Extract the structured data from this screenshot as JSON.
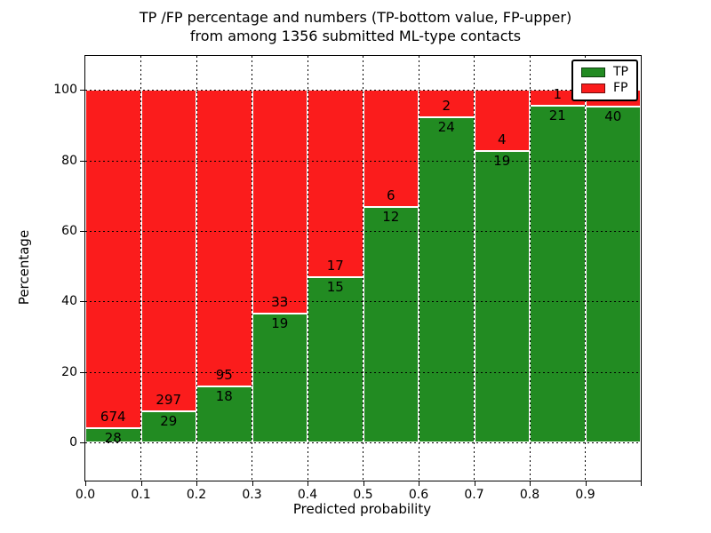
{
  "chart_data": {
    "type": "bar",
    "stacked": true,
    "title_line1": "TP /FP percentage and numbers (TP-bottom value, FP-upper)",
    "title_line2": "from among 1356 submitted ML-type contacts",
    "xlabel": "Predicted probability",
    "ylabel": "Percentage",
    "total_contacts": 1356,
    "xlim": [
      0.0,
      1.0
    ],
    "ylim": [
      -10.8,
      109.6
    ],
    "bin_width": 0.1,
    "grid": true,
    "y_ticks": [
      0,
      20,
      40,
      60,
      80,
      100
    ],
    "x_ticks": [
      {
        "v": 0.0,
        "label": "0.0"
      },
      {
        "v": 0.1,
        "label": "0.1"
      },
      {
        "v": 0.2,
        "label": "0.2"
      },
      {
        "v": 0.3,
        "label": "0.3"
      },
      {
        "v": 0.4,
        "label": "0.4"
      },
      {
        "v": 0.5,
        "label": "0.5"
      },
      {
        "v": 0.6,
        "label": "0.6"
      },
      {
        "v": 0.7,
        "label": "0.7"
      },
      {
        "v": 0.8,
        "label": "0.8"
      },
      {
        "v": 0.9,
        "label": "0.9"
      },
      {
        "v": 1.0,
        "label": ""
      }
    ],
    "bins": [
      {
        "x0": 0.0,
        "tp": 28,
        "fp": 674
      },
      {
        "x0": 0.1,
        "tp": 29,
        "fp": 297
      },
      {
        "x0": 0.2,
        "tp": 18,
        "fp": 95
      },
      {
        "x0": 0.3,
        "tp": 19,
        "fp": 33
      },
      {
        "x0": 0.4,
        "tp": 15,
        "fp": 17
      },
      {
        "x0": 0.5,
        "tp": 12,
        "fp": 6
      },
      {
        "x0": 0.6,
        "tp": 24,
        "fp": 2
      },
      {
        "x0": 0.7,
        "tp": 19,
        "fp": 4
      },
      {
        "x0": 0.8,
        "tp": 21,
        "fp": 1
      },
      {
        "x0": 0.9,
        "tp": 40,
        "fp": 2
      }
    ],
    "colors": {
      "tp": "#228b22",
      "fp": "#fb1c1c"
    },
    "legend": {
      "position": "upper-right",
      "entries": [
        {
          "label": "TP",
          "color": "#228b22"
        },
        {
          "label": "FP",
          "color": "#fb1c1c"
        }
      ]
    }
  }
}
